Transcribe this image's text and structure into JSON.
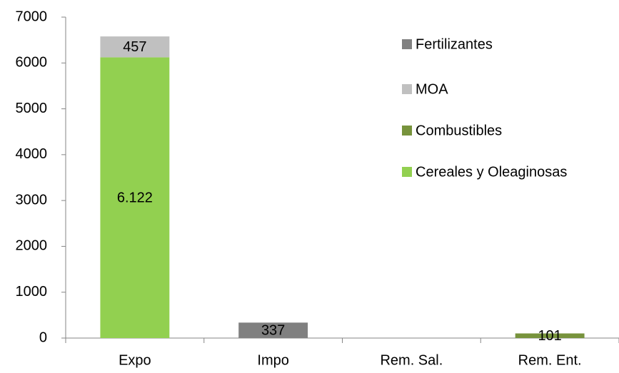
{
  "chart_data": {
    "type": "bar",
    "stacked": true,
    "categories": [
      "Expo",
      "Impo",
      "Rem. Sal.",
      "Rem. Ent."
    ],
    "series": [
      {
        "name": "Cereales y Oleaginosas",
        "color": "#92d050",
        "values": [
          6122,
          null,
          null,
          null
        ],
        "value_labels": [
          "6.122",
          null,
          null,
          null
        ]
      },
      {
        "name": "Combustibles",
        "color": "#77933c",
        "values": [
          null,
          null,
          null,
          101
        ]
      },
      {
        "name": "MOA",
        "color": "#c0c0c0",
        "values": [
          457,
          null,
          null,
          null
        ]
      },
      {
        "name": "Fertilizantes",
        "color": "#808080",
        "values": [
          null,
          337,
          null,
          null
        ]
      }
    ],
    "ylim": [
      0,
      7000
    ],
    "yticks": [
      0,
      1000,
      2000,
      3000,
      4000,
      5000,
      6000,
      7000
    ],
    "grid": false,
    "legend": "right"
  }
}
